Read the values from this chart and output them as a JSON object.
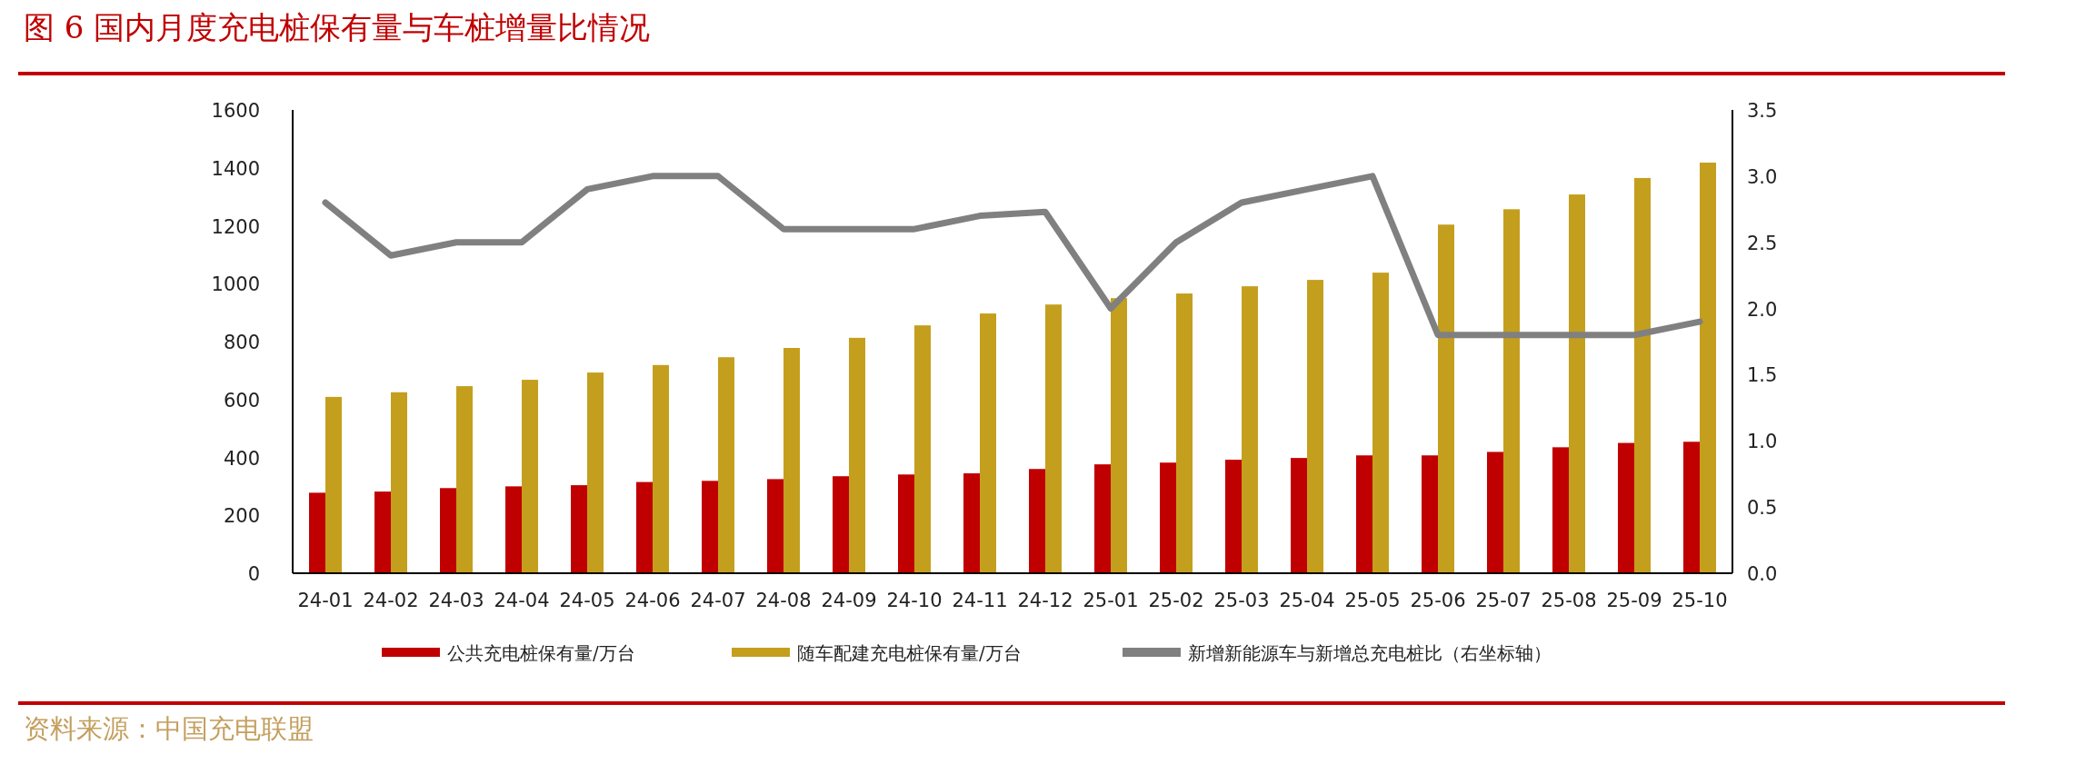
{
  "chart_data": {
    "type": "bar",
    "title": "图 6  国内月度充电桩保有量与车桩增量比情况",
    "categories": [
      "24-01",
      "24-02",
      "24-03",
      "24-04",
      "24-05",
      "24-06",
      "24-07",
      "24-08",
      "24-09",
      "24-10",
      "24-11",
      "24-12",
      "25-01",
      "25-02",
      "25-03",
      "25-04",
      "25-05",
      "25-06",
      "25-07",
      "25-08",
      "25-09",
      "25-10"
    ],
    "series": [
      {
        "name": "公共充电桩保有量/万台",
        "type": "bar",
        "color": "#c00000",
        "values": [
          278,
          282,
          294,
          300,
          304,
          315,
          319,
          325,
          335,
          341,
          345,
          360,
          376,
          382,
          392,
          398,
          407,
          407,
          419,
          435,
          450,
          454
        ]
      },
      {
        "name": "随车配建充电桩保有量/万台",
        "type": "bar",
        "color": "#c49f1e",
        "values": [
          609,
          625,
          646,
          668,
          693,
          719,
          746,
          778,
          813,
          856,
          897,
          928,
          950,
          966,
          991,
          1013,
          1038,
          1204,
          1257,
          1308,
          1365,
          1418
        ]
      },
      {
        "name": "新增新能源车与新增总充电桩比（右坐标轴）",
        "type": "line",
        "axis": "y2",
        "color": "#808080",
        "values": [
          2.8,
          2.4,
          2.5,
          2.5,
          2.9,
          3.0,
          3.0,
          2.6,
          2.6,
          2.6,
          2.7,
          2.73,
          2.0,
          2.5,
          2.8,
          2.9,
          3.0,
          1.8,
          1.8,
          1.8,
          1.8,
          1.9
        ]
      }
    ],
    "ylim": [
      0,
      1600
    ],
    "yticks": [
      0,
      200,
      400,
      600,
      800,
      1000,
      1200,
      1400,
      1600
    ],
    "y2lim": [
      0,
      3.5
    ],
    "y2ticks": [
      {
        "value": 0,
        "label": "0.0"
      },
      0.5,
      {
        "value": 1,
        "label": "1.0"
      },
      1.5,
      {
        "value": 2,
        "label": "2.0"
      },
      2.5,
      {
        "value": 3,
        "label": "3.0"
      },
      3.5
    ],
    "legend": "bottom",
    "annotations": [
      "资料来源：中国充电联盟"
    ]
  }
}
